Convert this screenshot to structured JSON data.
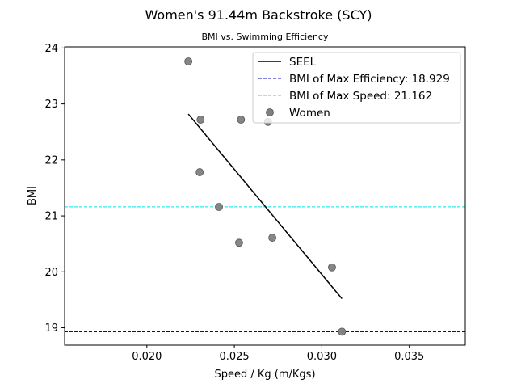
{
  "chart_data": {
    "type": "scatter",
    "title": "Women's 91.44m Backstroke (SCY)",
    "subtitle": "BMI vs. Swimming Efficiency",
    "xlabel": "Speed / Kg (m/Kgs)",
    "ylabel": "BMI",
    "xlim": [
      0.0153,
      0.0382
    ],
    "ylim": [
      18.69,
      24.02
    ],
    "xticks": [
      0.02,
      0.025,
      0.03,
      0.035
    ],
    "xtick_labels": [
      "0.020",
      "0.025",
      "0.030",
      "0.035"
    ],
    "yticks": [
      19,
      20,
      21,
      22,
      23,
      24
    ],
    "ytick_labels": [
      "19",
      "20",
      "21",
      "22",
      "23",
      "24"
    ],
    "grid": false,
    "legend_position": "top-right",
    "series": [
      {
        "name": "Women",
        "kind": "scatter",
        "color": "#808080",
        "points": [
          {
            "x": 0.02237,
            "y": 23.76
          },
          {
            "x": 0.02307,
            "y": 22.72
          },
          {
            "x": 0.02538,
            "y": 22.72
          },
          {
            "x": 0.02692,
            "y": 22.68
          },
          {
            "x": 0.02302,
            "y": 21.78
          },
          {
            "x": 0.02412,
            "y": 21.16
          },
          {
            "x": 0.02527,
            "y": 20.52
          },
          {
            "x": 0.02717,
            "y": 20.61
          },
          {
            "x": 0.03058,
            "y": 20.08
          },
          {
            "x": 0.03115,
            "y": 18.93
          }
        ]
      },
      {
        "name": "SEEL",
        "kind": "line",
        "color": "#000000",
        "points": [
          {
            "x": 0.02237,
            "y": 22.82
          },
          {
            "x": 0.03115,
            "y": 19.52
          }
        ]
      }
    ],
    "reference_lines": [
      {
        "name": "BMI of Max Efficiency: 18.929",
        "orientation": "horizontal",
        "y": 18.929,
        "color": "#0000cc",
        "style": "dashed"
      },
      {
        "name": "BMI of Max Speed: 21.162",
        "orientation": "horizontal",
        "y": 21.162,
        "color": "#00e5e5",
        "style": "dashed"
      }
    ],
    "legend": [
      "SEEL",
      "BMI of Max Efficiency: 18.929",
      "BMI of Max Speed: 21.162",
      "Women"
    ]
  }
}
